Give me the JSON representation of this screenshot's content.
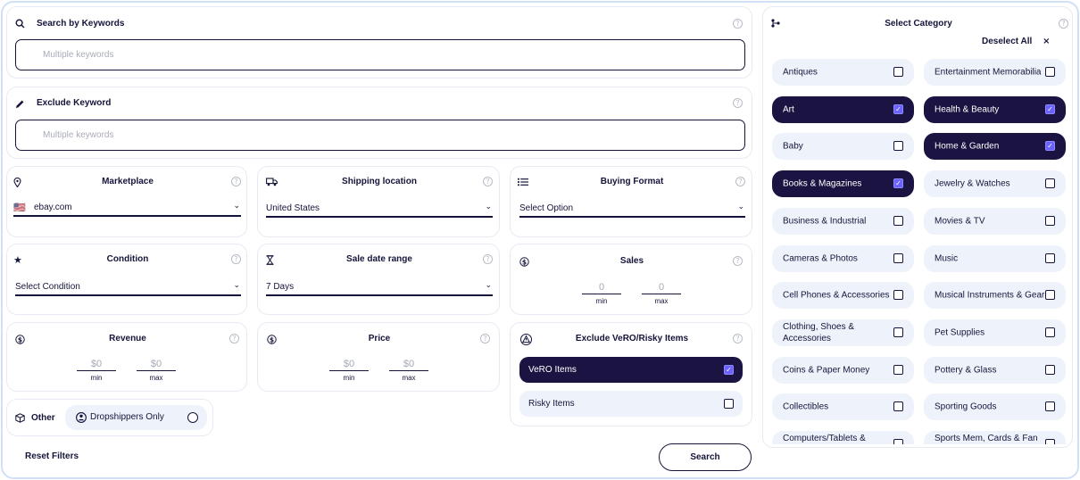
{
  "search_keywords": {
    "title": "Search by Keywords",
    "placeholder": "Multiple keywords",
    "help": "?"
  },
  "exclude_keyword": {
    "title": "Exclude Keyword",
    "placeholder": "Multiple keywords",
    "help": "?"
  },
  "marketplace": {
    "title": "Marketplace",
    "flag": "🇺🇸",
    "value": "ebay.com",
    "help": "?"
  },
  "shipping_location": {
    "title": "Shipping location",
    "value": "United States",
    "help": "?"
  },
  "buying_format": {
    "title": "Buying Format",
    "value": "Select Option",
    "help": "?"
  },
  "condition": {
    "title": "Condition",
    "value": "Select Condition",
    "help": "?"
  },
  "sale_date_range": {
    "title": "Sale date range",
    "value": "7 Days",
    "help": "?"
  },
  "sales": {
    "title": "Sales",
    "min_value": "0",
    "max_value": "0",
    "min_label": "min",
    "max_label": "max",
    "help": "?"
  },
  "revenue": {
    "title": "Revenue",
    "min_value": "$0",
    "max_value": "$0",
    "min_label": "min",
    "max_label": "max",
    "help": "?"
  },
  "price": {
    "title": "Price",
    "min_value": "$0",
    "max_value": "$0",
    "min_label": "min",
    "max_label": "max",
    "help": "?"
  },
  "exclude_vero": {
    "title": "Exclude VeRO/Risky Items",
    "help": "?",
    "items": [
      {
        "label": "VeRO Items",
        "checked": true
      },
      {
        "label": "Risky Items",
        "checked": false
      }
    ]
  },
  "other": {
    "title": "Other",
    "dropshippers_label": "Dropshippers Only",
    "dropshippers_selected": false
  },
  "actions": {
    "reset_label": "Reset Filters",
    "search_label": "Search"
  },
  "category": {
    "title": "Select Category",
    "deselect_label": "Deselect All",
    "deselect_icon": "×",
    "help": "?",
    "items": [
      {
        "label": "Antiques",
        "checked": false
      },
      {
        "label": "Entertainment Memorabilia",
        "checked": false
      },
      {
        "label": "Art",
        "checked": true
      },
      {
        "label": "Health & Beauty",
        "checked": true
      },
      {
        "label": "Baby",
        "checked": false
      },
      {
        "label": "Home & Garden",
        "checked": true
      },
      {
        "label": "Books & Magazines",
        "checked": true
      },
      {
        "label": "Jewelry & Watches",
        "checked": false
      },
      {
        "label": "Business & Industrial",
        "checked": false
      },
      {
        "label": "Movies & TV",
        "checked": false
      },
      {
        "label": "Cameras & Photos",
        "checked": false
      },
      {
        "label": "Music",
        "checked": false
      },
      {
        "label": "Cell Phones & Accessories",
        "checked": false
      },
      {
        "label": "Musical Instruments & Gear",
        "checked": false
      },
      {
        "label": "Clothing, Shoes & Accessories",
        "checked": false
      },
      {
        "label": "Pet Supplies",
        "checked": false
      },
      {
        "label": "Coins & Paper Money",
        "checked": false
      },
      {
        "label": "Pottery & Glass",
        "checked": false
      },
      {
        "label": "Collectibles",
        "checked": false
      },
      {
        "label": "Sporting Goods",
        "checked": false
      },
      {
        "label": "Computers/Tablets & Networking",
        "checked": false
      },
      {
        "label": "Sports Mem, Cards & Fan Shop",
        "checked": false
      }
    ]
  },
  "icons": {
    "search": "search-icon",
    "pencil": "pencil-icon",
    "location": "location-pin-icon",
    "truck": "truck-icon",
    "list": "list-icon",
    "star": "star-icon",
    "hourglass": "hourglass-icon",
    "dollar": "dollar-icon",
    "warning": "warning-triangle-icon",
    "box": "box-icon",
    "category": "category-icon"
  }
}
